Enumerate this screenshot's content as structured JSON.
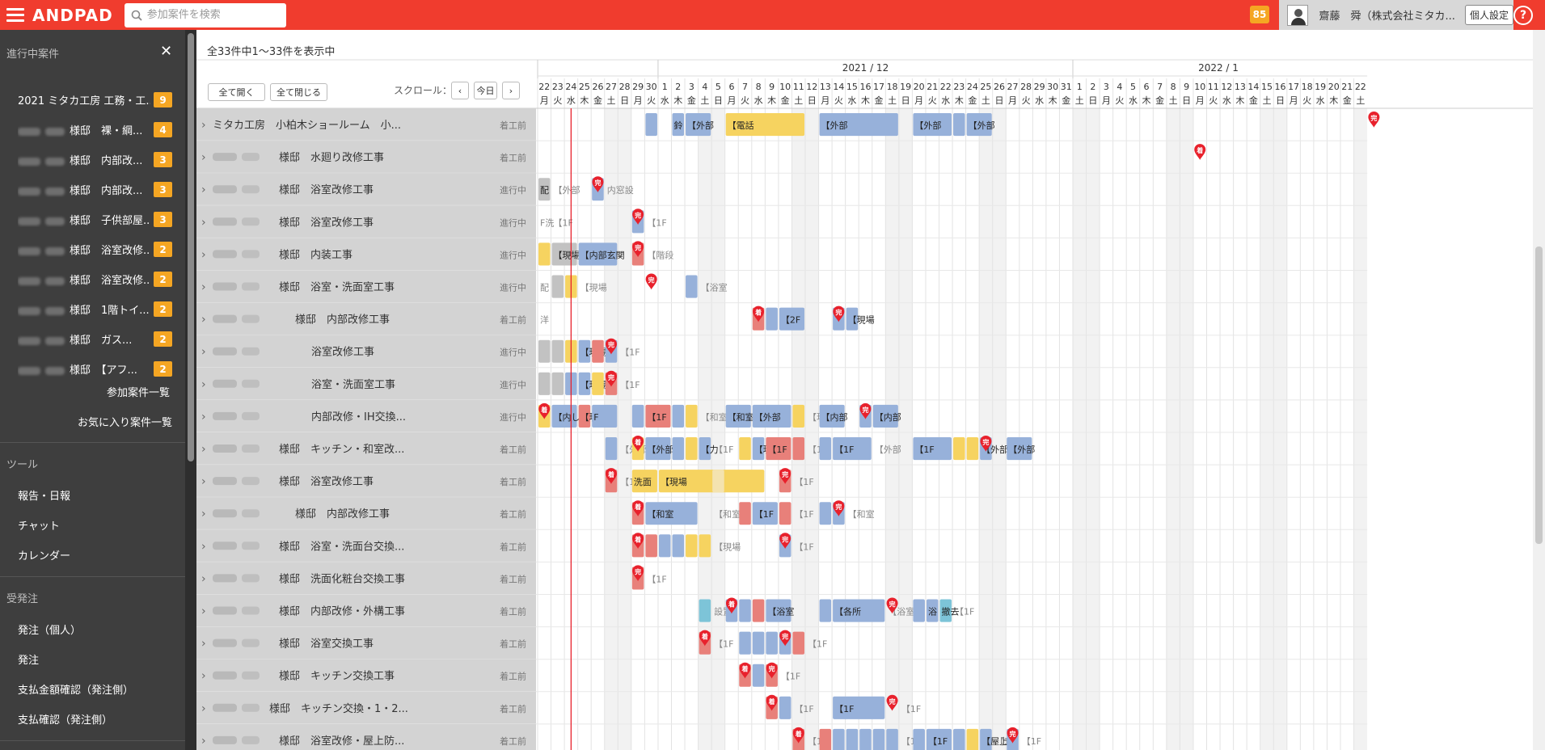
{
  "header": {
    "logo": "ANDPAD",
    "search_placeholder": "参加案件を検索",
    "notification_count": "85",
    "user_name": "齋藤　舜（株式会社ミタカ...",
    "settings_label": "個人設定",
    "help_label": "?"
  },
  "sidebar": {
    "section_in_progress": "進行中案件",
    "projects": [
      {
        "name": "2021 ミタカ工房 工務・工...",
        "badge": "9"
      },
      {
        "name": "様邸　裸・綱...",
        "badge": "4"
      },
      {
        "name": "様邸　内部改...",
        "badge": "3"
      },
      {
        "name": "様邸　内部改...",
        "badge": "3"
      },
      {
        "name": "様邸　子供部屋...",
        "badge": "3"
      },
      {
        "name": "様邸　浴室改修...",
        "badge": "2"
      },
      {
        "name": "様邸　浴室改修...",
        "badge": "2"
      },
      {
        "name": "様邸　1階トイ...",
        "badge": "2"
      },
      {
        "name": "様邸　ガス...",
        "badge": "2"
      },
      {
        "name": "様邸　【アフ...",
        "badge": "2"
      }
    ],
    "link_participating": "参加案件一覧",
    "link_favorites": "お気に入り案件一覧",
    "section_tools": "ツール",
    "tools": [
      "報告・日報",
      "チャット",
      "カレンダー"
    ],
    "section_orders": "受発注",
    "orders": [
      "発注（個人）",
      "発注",
      "支払金額確認（発注側）",
      "支払確認（発注側）"
    ]
  },
  "main": {
    "count_text": "全33件中1〜33件を表示中",
    "expand_all": "全て開く",
    "collapse_all": "全て閉じる",
    "scroll_label": "スクロール：",
    "prev_label": "‹",
    "today_label": "今日",
    "next_label": "›",
    "month_labels": [
      "2021 / 12",
      "2022 / 1"
    ],
    "weekday_names": [
      "月",
      "火",
      "水",
      "木",
      "金",
      "土",
      "日"
    ],
    "days": [
      22,
      23,
      24,
      25,
      26,
      27,
      28,
      29,
      30,
      1,
      2,
      3,
      4,
      5,
      6,
      7,
      8,
      9,
      10,
      11,
      12,
      13,
      14,
      15,
      16,
      17,
      18,
      19,
      20,
      21,
      22,
      23,
      24,
      25,
      26,
      27,
      28,
      29,
      30,
      31,
      1,
      2,
      3,
      4,
      5,
      6,
      7,
      8,
      9,
      10,
      11,
      12,
      13,
      14,
      15,
      16,
      17,
      18,
      19,
      20,
      21,
      22
    ],
    "start_weekday_index": 0,
    "today_index": 2,
    "rows": [
      {
        "name": "ミタカ工房　小柏木ショールーム　小...",
        "status": "着工前",
        "blurred": false
      },
      {
        "name": "様邸　水廻り改修工事",
        "status": "着工前",
        "blurred": true
      },
      {
        "name": "様邸　浴室改修工事",
        "status": "進行中",
        "blurred": true
      },
      {
        "name": "様邸　浴室改修工事",
        "status": "進行中",
        "blurred": true
      },
      {
        "name": "様邸　内装工事",
        "status": "進行中",
        "blurred": true
      },
      {
        "name": "様邸　浴室・洗面室工事",
        "status": "進行中",
        "blurred": true
      },
      {
        "name": "様邸　内部改修工事",
        "status": "着工前",
        "blurred": true
      },
      {
        "name": "浴室改修工事",
        "status": "進行中",
        "blurred": true
      },
      {
        "name": "浴室・洗面室工事",
        "status": "進行中",
        "blurred": true
      },
      {
        "name": "内部改修・IH交換...",
        "status": "進行中",
        "blurred": true
      },
      {
        "name": "様邸　キッチン・和室改...",
        "status": "着工前",
        "blurred": true
      },
      {
        "name": "様邸　浴室改修工事",
        "status": "着工前",
        "blurred": true
      },
      {
        "name": "様邸　内部改修工事",
        "status": "着工前",
        "blurred": true
      },
      {
        "name": "様邸　浴室・洗面台交換...",
        "status": "着工前",
        "blurred": true
      },
      {
        "name": "様邸　洗面化粧台交換工事",
        "status": "着工前",
        "blurred": true
      },
      {
        "name": "様邸　内部改修・外構工事",
        "status": "着工前",
        "blurred": true
      },
      {
        "name": "様邸　浴室交換工事",
        "status": "着工前",
        "blurred": true
      },
      {
        "name": "様邸　キッチン交換工事",
        "status": "着工前",
        "blurred": true
      },
      {
        "name": "様邸　キッチン交換・1・2...",
        "status": "着工前",
        "blurred": true
      },
      {
        "name": "様邸　浴室改修・屋上防...",
        "status": "着工前",
        "blurred": true
      }
    ],
    "bar_colors": {
      "b": "#97b1da",
      "y": "#f6d360",
      "r": "#e8807a",
      "g": "#c2c2c2",
      "t": "#7dc4d8",
      "l": "#f4e3b0"
    },
    "marker_color": "#e8212c",
    "marker_labels": {
      "s": "着",
      "e": "完"
    },
    "tasks": [
      [
        [
          8,
          1,
          "b",
          ""
        ],
        [
          10,
          1,
          "b",
          "鈴"
        ],
        [
          11,
          2,
          "b",
          "【外部"
        ],
        [
          14,
          6,
          "y",
          "【電話"
        ],
        [
          21,
          6,
          "b",
          "【外部"
        ],
        [
          28,
          3,
          "b",
          "【外部"
        ],
        [
          31,
          1,
          "b",
          ""
        ],
        [
          32,
          2,
          "b",
          "【外部"
        ],
        [
          "m",
          62,
          "e"
        ]
      ],
      [
        [
          "m",
          49,
          "s"
        ]
      ],
      [
        [
          0,
          1,
          "g",
          "配"
        ],
        [
          1,
          1,
          "",
          "【外部"
        ],
        [
          4,
          1,
          "b",
          ""
        ],
        [
          "m",
          4,
          "e"
        ],
        [
          5,
          1,
          "",
          "内窓設"
        ]
      ],
      [
        [
          0,
          1,
          "",
          "F洗"
        ],
        [
          1,
          1,
          "",
          "【1F"
        ],
        [
          7,
          1,
          "b",
          ""
        ],
        [
          "m",
          7,
          "e"
        ],
        [
          8,
          1,
          "",
          "【1F"
        ]
      ],
      [
        [
          0,
          1,
          "y",
          ""
        ],
        [
          1,
          2,
          "g",
          "【現場"
        ],
        [
          3,
          3,
          "b",
          "【内部玄関"
        ],
        [
          7,
          1,
          "r",
          ""
        ],
        [
          "m",
          7,
          "e"
        ],
        [
          8,
          1,
          "",
          "【階段"
        ]
      ],
      [
        [
          0,
          1,
          "",
          "配"
        ],
        [
          1,
          1,
          "g",
          ""
        ],
        [
          2,
          1,
          "y",
          ""
        ],
        [
          3,
          1,
          "",
          "【現場"
        ],
        [
          "m",
          8,
          "e"
        ],
        [
          11,
          1,
          "b",
          ""
        ],
        [
          12,
          1,
          "",
          "【浴室"
        ]
      ],
      [
        [
          0,
          1,
          "",
          "洋"
        ],
        [
          16,
          1,
          "r",
          ""
        ],
        [
          "m",
          16,
          "s"
        ],
        [
          17,
          1,
          "b",
          ""
        ],
        [
          18,
          2,
          "b",
          "【2F"
        ],
        [
          22,
          1,
          "b",
          ""
        ],
        [
          "m",
          22,
          "e"
        ],
        [
          23,
          1,
          "b",
          "【現場"
        ]
      ],
      [
        [
          0,
          1,
          "g",
          ""
        ],
        [
          1,
          1,
          "g",
          ""
        ],
        [
          2,
          1,
          "y",
          ""
        ],
        [
          3,
          1,
          "b",
          "【現場"
        ],
        [
          4,
          1,
          "r",
          ""
        ],
        [
          5,
          1,
          "b",
          ""
        ],
        [
          "m",
          5,
          "e"
        ],
        [
          6,
          1,
          "",
          "【1F"
        ]
      ],
      [
        [
          0,
          1,
          "g",
          ""
        ],
        [
          1,
          1,
          "g",
          ""
        ],
        [
          2,
          1,
          "b",
          ""
        ],
        [
          3,
          1,
          "b",
          "【現場"
        ],
        [
          4,
          1,
          "y",
          ""
        ],
        [
          5,
          1,
          "r",
          ""
        ],
        [
          "m",
          5,
          "e"
        ],
        [
          6,
          1,
          "",
          "【1F"
        ]
      ],
      [
        [
          0,
          1,
          "y",
          ""
        ],
        [
          "m",
          0,
          "s"
        ],
        [
          1,
          2,
          "b",
          "【内し"
        ],
        [
          3,
          1,
          "r",
          "【現場"
        ],
        [
          4,
          2,
          "b",
          "F"
        ],
        [
          7,
          1,
          "b",
          ""
        ],
        [
          8,
          2,
          "r",
          "【1F"
        ],
        [
          10,
          1,
          "b",
          ""
        ],
        [
          11,
          1,
          "y",
          ""
        ],
        [
          12,
          1,
          "",
          "【和室"
        ],
        [
          14,
          2,
          "b",
          "【和室"
        ],
        [
          16,
          3,
          "b",
          "【外部"
        ],
        [
          19,
          1,
          "y",
          ""
        ],
        [
          20,
          1,
          "",
          "【現場"
        ],
        [
          21,
          2,
          "b",
          "【内部"
        ],
        [
          24,
          1,
          "b",
          ""
        ],
        [
          "m",
          24,
          "e"
        ],
        [
          25,
          2,
          "b",
          "【内部"
        ]
      ],
      [
        [
          5,
          1,
          "b",
          ""
        ],
        [
          6,
          1,
          "",
          "【外部"
        ],
        [
          7,
          1,
          "y",
          ""
        ],
        [
          "m",
          7,
          "s"
        ],
        [
          8,
          2,
          "b",
          "【外部"
        ],
        [
          10,
          1,
          "b",
          ""
        ],
        [
          11,
          1,
          "y",
          ""
        ],
        [
          12,
          1,
          "b",
          "【力"
        ],
        [
          13,
          1,
          "",
          "【1F"
        ],
        [
          15,
          1,
          "y",
          ""
        ],
        [
          16,
          1,
          "b",
          "【現場"
        ],
        [
          17,
          2,
          "r",
          "【1F"
        ],
        [
          19,
          1,
          "r",
          ""
        ],
        [
          20,
          1,
          "",
          "【1F"
        ],
        [
          21,
          1,
          "b",
          ""
        ],
        [
          22,
          3,
          "b",
          "【1F"
        ],
        [
          25,
          1,
          "",
          "【外部"
        ],
        [
          28,
          3,
          "b",
          "【1F"
        ],
        [
          31,
          1,
          "y",
          ""
        ],
        [
          32,
          1,
          "y",
          ""
        ],
        [
          33,
          1,
          "b",
          "【外部"
        ],
        [
          "m",
          33,
          "e"
        ],
        [
          35,
          2,
          "b",
          "【外部"
        ]
      ],
      [
        [
          5,
          1,
          "r",
          ""
        ],
        [
          "m",
          5,
          "s"
        ],
        [
          6,
          1,
          "",
          "【1F"
        ],
        [
          7,
          2,
          "y",
          "洗面"
        ],
        [
          9,
          8,
          "y",
          "【現場"
        ],
        [
          13,
          1,
          "l",
          ""
        ],
        [
          18,
          1,
          "r",
          ""
        ],
        [
          "m",
          18,
          "e"
        ],
        [
          19,
          1,
          "",
          "【1F"
        ]
      ],
      [
        [
          7,
          1,
          "r",
          ""
        ],
        [
          "m",
          7,
          "s"
        ],
        [
          8,
          4,
          "b",
          "【和室"
        ],
        [
          13,
          1,
          "",
          "【和室"
        ],
        [
          15,
          1,
          "r",
          ""
        ],
        [
          16,
          2,
          "b",
          "【1F"
        ],
        [
          18,
          1,
          "r",
          ""
        ],
        [
          19,
          1,
          "",
          "【1F"
        ],
        [
          21,
          1,
          "b",
          ""
        ],
        [
          22,
          1,
          "b",
          ""
        ],
        [
          "m",
          22,
          "e"
        ],
        [
          23,
          1,
          "",
          "【和室"
        ]
      ],
      [
        [
          7,
          1,
          "r",
          ""
        ],
        [
          "m",
          7,
          "s"
        ],
        [
          8,
          1,
          "r",
          ""
        ],
        [
          9,
          1,
          "b",
          ""
        ],
        [
          10,
          1,
          "b",
          ""
        ],
        [
          11,
          1,
          "y",
          ""
        ],
        [
          12,
          1,
          "y",
          ""
        ],
        [
          13,
          1,
          "",
          "【現場"
        ],
        [
          18,
          1,
          "b",
          ""
        ],
        [
          "m",
          18,
          "e"
        ],
        [
          19,
          1,
          "",
          "【1F"
        ]
      ],
      [
        [
          7,
          1,
          "r",
          ""
        ],
        [
          "m",
          7,
          "e"
        ],
        [
          8,
          1,
          "",
          "【1F"
        ]
      ],
      [
        [
          12,
          1,
          "t",
          ""
        ],
        [
          13,
          1,
          "",
          "設置"
        ],
        [
          14,
          1,
          "b",
          ""
        ],
        [
          "m",
          14,
          "s"
        ],
        [
          15,
          1,
          "b",
          ""
        ],
        [
          16,
          1,
          "r",
          ""
        ],
        [
          17,
          2,
          "b",
          "【浴室"
        ],
        [
          21,
          1,
          "b",
          ""
        ],
        [
          22,
          4,
          "b",
          "【各所"
        ],
        [
          26,
          1,
          "",
          "【浴室"
        ],
        [
          "m",
          26,
          "e"
        ],
        [
          28,
          1,
          "b",
          ""
        ],
        [
          29,
          1,
          "b",
          "浴"
        ],
        [
          30,
          1,
          "t",
          "撤去"
        ],
        [
          31,
          1,
          "",
          "【1F"
        ]
      ],
      [
        [
          12,
          1,
          "r",
          ""
        ],
        [
          "m",
          12,
          "s"
        ],
        [
          13,
          1,
          "",
          "【1F"
        ],
        [
          15,
          1,
          "b",
          ""
        ],
        [
          16,
          1,
          "b",
          ""
        ],
        [
          17,
          1,
          "b",
          ""
        ],
        [
          18,
          1,
          "b",
          ""
        ],
        [
          "m",
          18,
          "e"
        ],
        [
          19,
          1,
          "r",
          ""
        ],
        [
          20,
          1,
          "",
          "【1F"
        ]
      ],
      [
        [
          15,
          1,
          "r",
          ""
        ],
        [
          "m",
          15,
          "s"
        ],
        [
          16,
          1,
          "b",
          ""
        ],
        [
          17,
          1,
          "r",
          ""
        ],
        [
          "m",
          17,
          "e"
        ],
        [
          18,
          1,
          "",
          "【1F"
        ]
      ],
      [
        [
          17,
          1,
          "r",
          ""
        ],
        [
          "m",
          17,
          "s"
        ],
        [
          18,
          1,
          "b",
          ""
        ],
        [
          19,
          1,
          "",
          "【1F"
        ],
        [
          22,
          4,
          "b",
          "【1F"
        ],
        [
          "m",
          26,
          "e"
        ],
        [
          27,
          1,
          "",
          "【1F"
        ]
      ],
      [
        [
          19,
          1,
          "r",
          ""
        ],
        [
          "m",
          19,
          "s"
        ],
        [
          20,
          1,
          "",
          "【1F"
        ],
        [
          21,
          1,
          "r",
          ""
        ],
        [
          22,
          1,
          "b",
          ""
        ],
        [
          23,
          1,
          "b",
          ""
        ],
        [
          24,
          1,
          "b",
          ""
        ],
        [
          25,
          1,
          "b",
          ""
        ],
        [
          26,
          1,
          "b",
          ""
        ],
        [
          27,
          1,
          "",
          "【1F"
        ],
        [
          28,
          1,
          "b",
          ""
        ],
        [
          29,
          2,
          "b",
          "【1F"
        ],
        [
          31,
          1,
          "b",
          ""
        ],
        [
          32,
          1,
          "y",
          ""
        ],
        [
          33,
          1,
          "b",
          "【屋上"
        ],
        [
          34,
          1,
          "",
          "【1F"
        ],
        [
          35,
          1,
          "b",
          ""
        ],
        [
          "m",
          35,
          "e"
        ],
        [
          36,
          1,
          "",
          "【1F"
        ]
      ]
    ]
  }
}
